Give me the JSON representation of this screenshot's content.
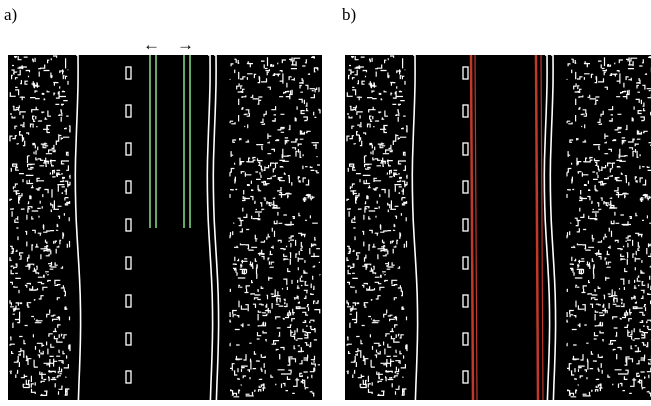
{
  "panels": [
    {
      "label": "a)"
    },
    {
      "label": "b)"
    }
  ],
  "arrows": {
    "left": "←",
    "right": "→"
  }
}
